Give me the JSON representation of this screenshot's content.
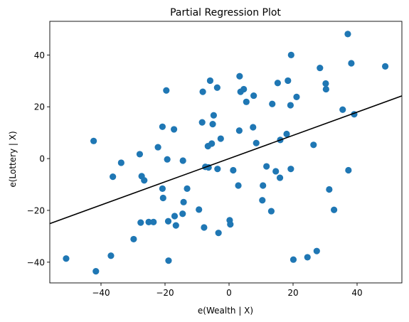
{
  "chart_data": {
    "type": "scatter",
    "title": "Partial Regression Plot",
    "xlabel": "e(Wealth | X)",
    "ylabel": "e(Lottery | X)",
    "xlim": [
      -56,
      54
    ],
    "ylim": [
      -48,
      53
    ],
    "xticks": [
      -40,
      -20,
      0,
      20,
      40
    ],
    "yticks": [
      -40,
      -20,
      0,
      20,
      40
    ],
    "grid": false,
    "colors": {
      "points": "#1f77b4",
      "line": "#000000"
    },
    "fit_line": {
      "x": [
        -56,
        54
      ],
      "y": [
        -25.1,
        24.2
      ]
    },
    "points": [
      {
        "x": -50.9,
        "y": -38.6
      },
      {
        "x": -41.6,
        "y": -43.5
      },
      {
        "x": -42.3,
        "y": 6.8
      },
      {
        "x": -36.9,
        "y": -37.5
      },
      {
        "x": -36.3,
        "y": -7.0
      },
      {
        "x": -33.7,
        "y": -1.6
      },
      {
        "x": -29.8,
        "y": -31.1
      },
      {
        "x": -27.9,
        "y": 1.7
      },
      {
        "x": -27.6,
        "y": -24.7
      },
      {
        "x": -27.3,
        "y": -6.8
      },
      {
        "x": -26.5,
        "y": -8.4
      },
      {
        "x": -25.1,
        "y": -24.5
      },
      {
        "x": -23.6,
        "y": -24.5
      },
      {
        "x": -22.2,
        "y": 4.4
      },
      {
        "x": -20.8,
        "y": 12.3
      },
      {
        "x": -20.8,
        "y": -11.6
      },
      {
        "x": -20.6,
        "y": -15.2
      },
      {
        "x": -19.6,
        "y": 26.3
      },
      {
        "x": -19.3,
        "y": -0.3
      },
      {
        "x": -19.0,
        "y": -24.2
      },
      {
        "x": -18.9,
        "y": -39.4
      },
      {
        "x": -17.2,
        "y": 11.3
      },
      {
        "x": -17.0,
        "y": -22.2
      },
      {
        "x": -16.6,
        "y": -25.8
      },
      {
        "x": -14.5,
        "y": -21.3
      },
      {
        "x": -14.4,
        "y": -0.8
      },
      {
        "x": -14.2,
        "y": -16.8
      },
      {
        "x": -13.1,
        "y": -11.6
      },
      {
        "x": -9.4,
        "y": -19.7
      },
      {
        "x": -8.4,
        "y": 14.0
      },
      {
        "x": -8.2,
        "y": 25.8
      },
      {
        "x": -7.8,
        "y": -26.6
      },
      {
        "x": -7.4,
        "y": -3.2
      },
      {
        "x": -6.6,
        "y": 4.8
      },
      {
        "x": -6.4,
        "y": -3.4
      },
      {
        "x": -5.9,
        "y": 30.1
      },
      {
        "x": -5.4,
        "y": 5.8
      },
      {
        "x": -5.1,
        "y": 13.3
      },
      {
        "x": -4.8,
        "y": 16.7
      },
      {
        "x": -3.7,
        "y": 27.4
      },
      {
        "x": -3.6,
        "y": -4.0
      },
      {
        "x": -3.3,
        "y": -28.7
      },
      {
        "x": -2.6,
        "y": 7.7
      },
      {
        "x": 0.2,
        "y": -23.8
      },
      {
        "x": 0.4,
        "y": -25.4
      },
      {
        "x": 1.3,
        "y": -4.5
      },
      {
        "x": 2.9,
        "y": -10.4
      },
      {
        "x": 3.2,
        "y": 10.8
      },
      {
        "x": 3.3,
        "y": 31.8
      },
      {
        "x": 3.6,
        "y": 25.8
      },
      {
        "x": 4.6,
        "y": 26.8
      },
      {
        "x": 5.4,
        "y": 21.9
      },
      {
        "x": 7.5,
        "y": 12.1
      },
      {
        "x": 7.7,
        "y": 24.3
      },
      {
        "x": 8.5,
        "y": 6.0
      },
      {
        "x": 10.4,
        "y": -16.1
      },
      {
        "x": 10.6,
        "y": -10.4
      },
      {
        "x": 11.7,
        "y": -3.0
      },
      {
        "x": 13.2,
        "y": -20.3
      },
      {
        "x": 13.5,
        "y": 21.1
      },
      {
        "x": 14.6,
        "y": -4.9
      },
      {
        "x": 15.2,
        "y": 29.2
      },
      {
        "x": 15.9,
        "y": -7.4
      },
      {
        "x": 16.0,
        "y": 7.2
      },
      {
        "x": 18.0,
        "y": 9.5
      },
      {
        "x": 18.4,
        "y": 30.1
      },
      {
        "x": 19.2,
        "y": 20.6
      },
      {
        "x": 19.3,
        "y": -4.0
      },
      {
        "x": 19.4,
        "y": 40.0
      },
      {
        "x": 20.1,
        "y": -39.0
      },
      {
        "x": 21.1,
        "y": 23.8
      },
      {
        "x": 24.5,
        "y": -38.1
      },
      {
        "x": 26.4,
        "y": 5.3
      },
      {
        "x": 27.4,
        "y": -35.7
      },
      {
        "x": 28.4,
        "y": 35.0
      },
      {
        "x": 30.2,
        "y": 29.0
      },
      {
        "x": 30.3,
        "y": 26.8
      },
      {
        "x": 31.3,
        "y": -11.9
      },
      {
        "x": 32.8,
        "y": -19.8
      },
      {
        "x": 35.5,
        "y": 18.9
      },
      {
        "x": 37.1,
        "y": 48.1
      },
      {
        "x": 37.3,
        "y": -4.5
      },
      {
        "x": 38.2,
        "y": 36.8
      },
      {
        "x": 39.1,
        "y": 17.1
      },
      {
        "x": 48.8,
        "y": 35.6
      }
    ]
  }
}
